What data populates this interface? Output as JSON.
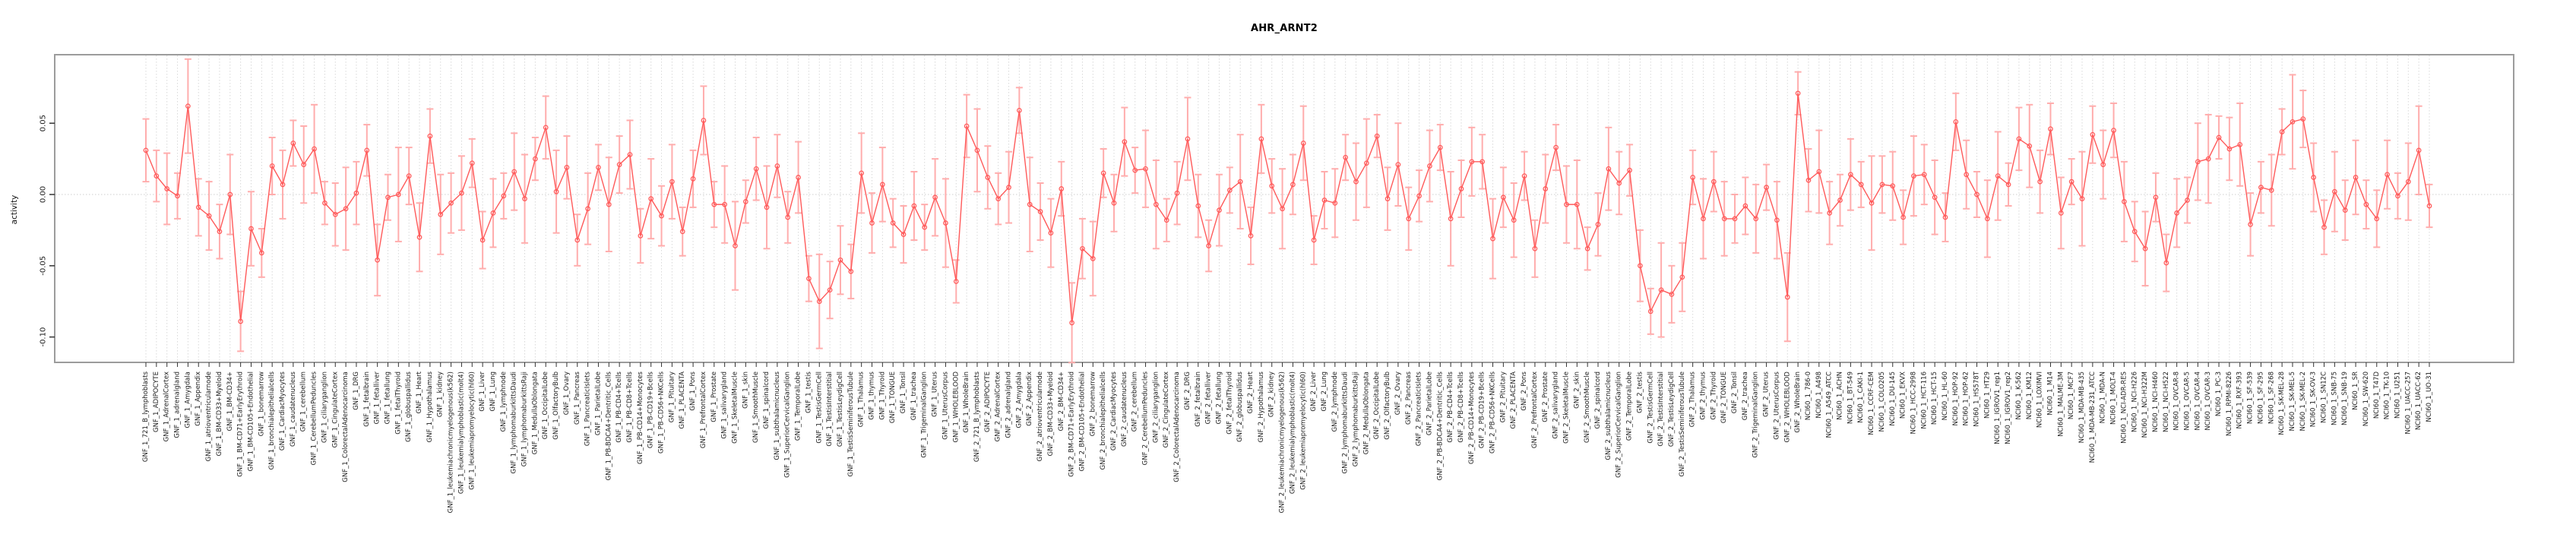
{
  "figure": {
    "title": "AHR_ARNT2",
    "ylabel": "activity"
  },
  "chart_data": {
    "type": "line",
    "title": "AHR_ARNT2",
    "xlabel": "",
    "ylabel": "activity",
    "ylim": [
      -0.118,
      0.098
    ],
    "grid": "dotted vertical gridline at every category; dotted horizontal line at y=0",
    "legend": "none",
    "error_bars": true,
    "marker": "open-circle",
    "colors": {
      "line": "#ff5a5a",
      "marker": "#ff5a5a",
      "error": "#ffadad",
      "grid": "#d8d8d8",
      "zero_line": "#cfcfcf",
      "border": "#9c9c9c",
      "axis_tick": "#333333",
      "tick_text": "#1a1a1a"
    },
    "y_ticks": [
      {
        "label": "0.05",
        "value": 0.05
      },
      {
        "label": "0.00",
        "value": 0.0
      },
      {
        "label": "-0.05",
        "value": -0.05
      },
      {
        "label": "-0.10",
        "value": -0.1
      }
    ],
    "categories": [
      "GNF_1_721_B_lymphoblasts",
      "GNF_1_ADIPOCYTE",
      "GNF_1_AdrenalCortex",
      "GNF_1_adrenalgland",
      "GNF_1_Amygdala",
      "GNF_1_Appendix",
      "GNF_1_atrioventricularnode",
      "GNF_1_BM-CD33+Myeloid",
      "GNF_1_BM-CD34+",
      "GNF_1_BM-CD71+EarlyErythroid",
      "GNF_1_BM-CD105+Endothelial",
      "GNF_1_bonemarrow",
      "GNF_1_bronchialepithelialcells",
      "GNF_1_CardiacMyocytes",
      "GNF_1_caudatenucleus",
      "GNF_1_cerebellum",
      "GNF_1_CerebellumPeduncles",
      "GNF_1_ciliaryganglion",
      "GNF_1_CingulateCortex",
      "GNF_1_ColorectalAdenocarcinoma",
      "GNF_1_DRG",
      "GNF_1_fetalbrain",
      "GNF_1_fetalliver",
      "GNF_1_fetallung",
      "GNF_1_fetalThyroid",
      "GNF_1_globuspallidus",
      "GNF_1_Heart",
      "GNF_1_Hypothalamus",
      "GNF_1_kidney",
      "GNF_1_leukemiachronicmyelogenous(k562)",
      "GNF_1_leukemialymphoblastic(molt4)",
      "GNF_1_leukemiapromyelocytic(hl60)",
      "GNF_1_Liver",
      "GNF_1_Lung",
      "GNF_1_lymphnode",
      "GNF_1_lymphomaburkittsDaudi",
      "GNF_1_lymphomaburkittsRaji",
      "GNF_1_MedullaOblongata",
      "GNF_1_OccipitalLobe",
      "GNF_1_OlfactoryBulb",
      "GNF_1_Ovary",
      "GNF_1_Pancreas",
      "GNF_1_PancreaticIslets",
      "GNF_1_ParietalLobe",
      "GNF_1_PB-BDCA4+Dentritic_Cells",
      "GNF_1_PB-CD4+Tcells",
      "GNF_1_PB-CD8+Tcells",
      "GNF_1_PB-CD14+Monocytes",
      "GNF_1_PB-CD19+Bcells",
      "GNF_1_PB-CD56+NKCells",
      "GNF_1_Pituitary",
      "GNF_1_PLACENTA",
      "GNF_1_Pons",
      "GNF_1_PrefrontalCortex",
      "GNF_1_Prostate",
      "GNF_1_salivarygland",
      "GNF_1_SkeletalMuscle",
      "GNF_1_skin",
      "GNF_1_SmoothMuscle",
      "GNF_1_spinalcord",
      "GNF_1_subthalamicnucleus",
      "GNF_1_SuperiorCervicalGanglion",
      "GNF_1_TemporalLobe",
      "GNF_1_testis",
      "GNF_1_TestisGermCell",
      "GNF_1_TestisInterstitial",
      "GNF_1_TestisLeydigCell",
      "GNF_1_TestisSeminiferousTubule",
      "GNF_1_Thalamus",
      "GNF_1_thymus",
      "GNF_1_Thyroid",
      "GNF_1_TONGUE",
      "GNF_1_Tonsil",
      "GNF_1_trachea",
      "GNF_1_TrigeminalGanglion",
      "GNF_1_Uterus",
      "GNF_1_UterusCorpus",
      "GNF_1_WHOLEBLOOD",
      "GNF_1_WholeBrain",
      "GNF_2_721_B_lymphoblasts",
      "GNF_2_ADIPOCYTE",
      "GNF_2_AdrenalCortex",
      "GNF_2_adrenalgland",
      "GNF_2_Amygdala",
      "GNF_2_Appendix",
      "GNF_2_atrioventricularnode",
      "GNF_2_BM-CD33+Myeloid",
      "GNF_2_BM-CD34+",
      "GNF_2_BM-CD71+EarlyErythroid",
      "GNF_2_BM-CD105+Endothelial",
      "GNF_2_bonemarrow",
      "GNF_2_bronchialepithelialcells",
      "GNF_2_CardiacMyocytes",
      "GNF_2_caudatenucleus",
      "GNF_2_cerebellum",
      "GNF_2_CerebellumPeduncles",
      "GNF_2_ciliaryganglion",
      "GNF_2_CingulateCortex",
      "GNF_2_ColorectalAdenocarcinoma",
      "GNF_2_DRG",
      "GNF_2_fetalbrain",
      "GNF_2_fetalliver",
      "GNF_2_fetallung",
      "GNF_2_fetalThyroid",
      "GNF_2_globuspallidus",
      "GNF_2_Heart",
      "GNF_2_Hypothalamus",
      "GNF_2_kidney",
      "GNF_2_leukemiachronicmyelogenous(k562)",
      "GNF_2_leukemialymphoblastic(molt4)",
      "GNF_2_leukemiapromyelocytic(hl60)",
      "GNF_2_Liver",
      "GNF_2_Lung",
      "GNF_2_lymphnode",
      "GNF_2_lymphomaburkittsDaudi",
      "GNF_2_lymphomaburkittsRaji",
      "GNF_2_MedullaOblongata",
      "GNF_2_OccipitalLobe",
      "GNF_2_OlfactoryBulb",
      "GNF_2_Ovary",
      "GNF_2_Pancreas",
      "GNF_2_PancreaticIslets",
      "GNF_2_ParietalLobe",
      "GNF_2_PB-BDCA4+Dentritic_Cells",
      "GNF_2_PB-CD4+Tcells",
      "GNF_2_PB-CD8+Tcells",
      "GNF_2_PB-CD14+Monocytes",
      "GNF_2_PB-CD19+Bcells",
      "GNF_2_PB-CD56+NKCells",
      "GNF_2_Pituitary",
      "GNF_2_PLACENTA",
      "GNF_2_Pons",
      "GNF_2_PrefrontalCortex",
      "GNF_2_Prostate",
      "GNF_2_salivarygland",
      "GNF_2_SkeletalMuscle",
      "GNF_2_skin",
      "GNF_2_SmoothMuscle",
      "GNF_2_spinalcord",
      "GNF_2_subthalamicnucleus",
      "GNF_2_SuperiorCervicalGanglion",
      "GNF_2_TemporalLobe",
      "GNF_2_testis",
      "GNF_2_TestisGermCell",
      "GNF_2_TestisInterstitial",
      "GNF_2_TestisLeydigCell",
      "GNF_2_TestisSeminiferousTubule",
      "GNF_2_Thalamus",
      "GNF_2_thymus",
      "GNF_2_Thyroid",
      "GNF_2_TONGUE",
      "GNF_2_Tonsil",
      "GNF_2_trachea",
      "GNF_2_TrigeminalGanglion",
      "GNF_2_Uterus",
      "GNF_2_UterusCorpus",
      "GNF_2_WHOLEBLOOD",
      "GNF_2_WholeBrain",
      "NCI60_1_786-0",
      "NCI60_1_A498",
      "NCI60_1_A549_ATCC",
      "NCI60_1_ACHN",
      "NCI60_1_BT-549",
      "NCI60_1_CAKI-1",
      "NCI60_1_CCRF-CEM",
      "NCI60_1_COLO205",
      "NCI60_1_DU-145",
      "NCI60_1_EKVX",
      "NCI60_1_HCC-2998",
      "NCI60_1_HCT-116",
      "NCI60_1_HCT-15",
      "NCI60_1_HL-60",
      "NCI60_1_HOP-92",
      "NCI60_1_HOP-62",
      "NCI60_1_HS578T",
      "NCI60_1_HT29",
      "NCI60_1_IGROV1_rep1",
      "NCI60_1_IGROV1_rep2",
      "NCI60_1_K-562",
      "NCI60_1_KM12",
      "NCI60_1_LOXIMVI",
      "NCI60_1_M14",
      "NCI60_1_MALME-3M",
      "NCI60_1_MCF7",
      "NCI60_1_MDA-MB-435",
      "NCI60_1_MDA-MB-231_ATCC",
      "NCI60_1_MDA-N",
      "NCI60_1_MOLT-4",
      "NCI60_1_NCI-ADR-RES",
      "NCI60_1_NCI-H226",
      "NCI60_1_NCI-H322M",
      "NCI60_1_NCI-H460",
      "NCI60_1_NCI-H522",
      "NCI60_1_OVCAR-8",
      "NCI60_1_OVCAR-5",
      "NCI60_1_OVCAR-4",
      "NCI60_1_OVCAR-3",
      "NCI60_1_PC-3",
      "NCI60_1_RPMI-8226",
      "NCI60_1_RXF-393",
      "NCI60_1_SF-539",
      "NCI60_1_SF-295",
      "NCI60_1_SF-268",
      "NCI60_1_SK-MEL-28",
      "NCI60_1_SK-MEL-5",
      "NCI60_1_SK-MEL-2",
      "NCI60_1_SK-OV-3",
      "NCI60_1_SN12C",
      "NCI60_1_SNB-75",
      "NCI60_1_SNB-19",
      "NCI60_1_SR",
      "NCI60_1_SW-620",
      "NCI60_1_T47D",
      "NCI60_1_TK-10",
      "NCI60_1_U251",
      "NCI60_1_UACC-257",
      "NCI60_1_UACC-62",
      "NCI60_1_UO-31"
    ],
    "values": [
      0.031,
      0.013,
      0.004,
      -0.001,
      0.062,
      -0.009,
      -0.015,
      -0.026,
      0.0,
      -0.089,
      -0.024,
      -0.041,
      0.02,
      0.007,
      0.036,
      0.021,
      0.032,
      -0.006,
      -0.014,
      -0.01,
      0.001,
      0.031,
      -0.046,
      -0.002,
      0.0,
      0.013,
      -0.03,
      0.041,
      -0.014,
      -0.006,
      0.001,
      0.022,
      -0.032,
      -0.013,
      -0.001,
      0.016,
      -0.003,
      0.025,
      0.047,
      0.002,
      0.019,
      -0.032,
      -0.01,
      0.019,
      -0.007,
      0.021,
      0.028,
      -0.029,
      -0.003,
      -0.015,
      0.009,
      -0.026,
      0.011,
      0.052,
      -0.007,
      -0.007,
      -0.036,
      -0.005,
      0.018,
      -0.009,
      0.02,
      -0.016,
      0.012,
      -0.059,
      -0.075,
      -0.067,
      -0.046,
      -0.054,
      0.015,
      -0.02,
      0.007,
      -0.02,
      -0.028,
      -0.008,
      -0.023,
      -0.002,
      -0.02,
      -0.061,
      0.048,
      0.031,
      0.012,
      -0.003,
      0.005,
      0.059,
      -0.007,
      -0.012,
      -0.027,
      0.004,
      -0.09,
      -0.038,
      -0.045,
      0.015,
      -0.006,
      0.037,
      0.017,
      0.018,
      -0.007,
      -0.018,
      0.001,
      0.039,
      -0.008,
      -0.036,
      -0.011,
      0.003,
      0.009,
      -0.029,
      0.039,
      0.006,
      -0.01,
      0.007,
      0.036,
      -0.032,
      -0.004,
      -0.006,
      0.026,
      0.009,
      0.022,
      0.041,
      -0.003,
      0.021,
      -0.017,
      -0.001,
      0.02,
      0.033,
      -0.017,
      0.004,
      0.023,
      0.023,
      -0.031,
      -0.002,
      -0.018,
      0.013,
      -0.038,
      0.004,
      0.033,
      -0.007,
      -0.007,
      -0.038,
      -0.021,
      0.018,
      0.008,
      0.017,
      -0.05,
      -0.082,
      -0.067,
      -0.07,
      -0.058,
      0.012,
      -0.017,
      0.009,
      -0.017,
      -0.017,
      -0.008,
      -0.017,
      0.005,
      -0.018,
      -0.072,
      0.071,
      0.01,
      0.016,
      -0.013,
      -0.004,
      0.014,
      0.007,
      -0.006,
      0.007,
      0.006,
      -0.016,
      0.013,
      0.014,
      -0.002,
      -0.016,
      0.051,
      0.014,
      0.0,
      -0.017,
      0.013,
      0.007,
      0.039,
      0.034,
      0.009,
      0.046,
      -0.013,
      0.009,
      -0.003,
      0.042,
      0.021,
      0.045,
      -0.005,
      -0.026,
      -0.038,
      -0.002,
      -0.048,
      -0.013,
      -0.004,
      0.023,
      0.025,
      0.04,
      0.032,
      0.035,
      -0.021,
      0.005,
      0.003,
      0.044,
      0.051,
      0.053,
      0.012,
      -0.023,
      0.002,
      -0.011,
      0.012,
      -0.007,
      -0.017,
      0.014,
      -0.001,
      0.009,
      0.031,
      -0.008
    ],
    "errors": [
      0.022,
      0.018,
      0.025,
      0.016,
      0.033,
      0.02,
      0.024,
      0.019,
      0.028,
      0.021,
      0.026,
      0.017,
      0.02,
      0.024,
      0.016,
      0.027,
      0.031,
      0.015,
      0.022,
      0.029,
      0.022,
      0.018,
      0.025,
      0.016,
      0.033,
      0.02,
      0.024,
      0.019,
      0.028,
      0.021,
      0.026,
      0.017,
      0.02,
      0.024,
      0.016,
      0.027,
      0.031,
      0.015,
      0.022,
      0.029,
      0.022,
      0.018,
      0.025,
      0.016,
      0.033,
      0.02,
      0.024,
      0.019,
      0.028,
      0.021,
      0.026,
      0.017,
      0.02,
      0.024,
      0.016,
      0.027,
      0.031,
      0.015,
      0.022,
      0.029,
      0.022,
      0.018,
      0.025,
      0.016,
      0.033,
      0.02,
      0.024,
      0.019,
      0.028,
      0.021,
      0.026,
      0.017,
      0.02,
      0.024,
      0.016,
      0.027,
      0.031,
      0.015,
      0.022,
      0.029,
      0.022,
      0.018,
      0.025,
      0.016,
      0.033,
      0.02,
      0.024,
      0.019,
      0.028,
      0.021,
      0.026,
      0.017,
      0.02,
      0.024,
      0.016,
      0.027,
      0.031,
      0.015,
      0.022,
      0.029,
      0.022,
      0.018,
      0.025,
      0.016,
      0.033,
      0.02,
      0.024,
      0.019,
      0.028,
      0.021,
      0.026,
      0.017,
      0.02,
      0.024,
      0.016,
      0.027,
      0.031,
      0.015,
      0.022,
      0.029,
      0.022,
      0.018,
      0.025,
      0.016,
      0.033,
      0.02,
      0.024,
      0.019,
      0.028,
      0.021,
      0.026,
      0.017,
      0.02,
      0.024,
      0.016,
      0.027,
      0.031,
      0.015,
      0.022,
      0.029,
      0.022,
      0.018,
      0.025,
      0.016,
      0.033,
      0.02,
      0.024,
      0.019,
      0.028,
      0.021,
      0.026,
      0.017,
      0.02,
      0.024,
      0.016,
      0.027,
      0.031,
      0.015,
      0.022,
      0.029,
      0.022,
      0.018,
      0.025,
      0.016,
      0.033,
      0.02,
      0.024,
      0.019,
      0.028,
      0.021,
      0.026,
      0.017,
      0.02,
      0.024,
      0.016,
      0.027,
      0.031,
      0.015,
      0.022,
      0.029,
      0.022,
      0.018,
      0.025,
      0.016,
      0.033,
      0.02,
      0.024,
      0.019,
      0.028,
      0.021,
      0.026,
      0.017,
      0.02,
      0.024,
      0.016,
      0.027,
      0.031,
      0.015,
      0.022,
      0.029,
      0.022,
      0.018,
      0.025,
      0.016,
      0.033,
      0.02,
      0.024,
      0.019,
      0.028,
      0.021,
      0.026,
      0.017,
      0.02,
      0.024,
      0.016,
      0.027,
      0.031,
      0.015
    ]
  }
}
